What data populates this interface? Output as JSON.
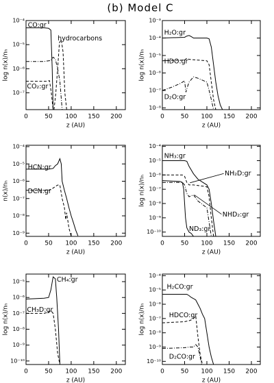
{
  "title": "(b) Model C",
  "chart_data": [
    {
      "type": "line",
      "ylabel": "log n(x)/nₕ",
      "xlabel": "z (AU)",
      "log_y": true,
      "xlim": [
        0,
        220
      ],
      "xticks": [
        0,
        50,
        100,
        150,
        200
      ],
      "ylim": [
        2e-08,
        0.0001
      ],
      "yticks": [
        {
          "value": 1e-07,
          "label": "10⁻⁷"
        },
        {
          "value": 1e-06,
          "label": "10⁻⁶"
        },
        {
          "value": 1e-05,
          "label": "10⁻⁵"
        },
        {
          "value": 0.0001,
          "label": "10⁻⁴"
        }
      ],
      "series": [
        {
          "name": "CO:gr",
          "color": "#000000",
          "dash": "solid",
          "x": [
            0,
            10,
            40,
            50,
            55,
            58,
            60
          ],
          "values": [
            5e-05,
            5e-05,
            5e-05,
            4.8e-05,
            4e-05,
            1e-06,
            2e-08
          ]
        },
        {
          "name": "hydrocarbons",
          "color": "#000000",
          "dash": "dashed",
          "x": [
            62,
            66,
            70,
            74,
            78,
            82,
            86,
            90
          ],
          "values": [
            2e-08,
            1e-07,
            1e-06,
            1.2e-05,
            1.6e-05,
            5e-06,
            1e-07,
            2e-08
          ]
        },
        {
          "color": "#000000",
          "dash": "dashdot",
          "x": [
            0,
            40,
            55,
            60,
            65,
            70,
            75,
            80
          ],
          "values": [
            2e-06,
            2e-06,
            2.2e-06,
            3e-06,
            2.5e-06,
            1e-06,
            3e-07,
            2e-08
          ]
        },
        {
          "name": "CO₂:gr",
          "color": "#000000",
          "dash": "dashed",
          "x": [
            0,
            45,
            52,
            56,
            60
          ],
          "values": [
            3e-07,
            3e-07,
            3.2e-07,
            1e-07,
            2e-08
          ]
        }
      ]
    },
    {
      "type": "line",
      "ylabel": "log n(x)/nₕ",
      "xlabel": "z (AU)",
      "log_y": true,
      "xlim": [
        0,
        220
      ],
      "xticks": [
        0,
        50,
        100,
        150,
        200
      ],
      "ylim": [
        8e-09,
        0.001
      ],
      "yticks": [
        {
          "value": 1e-08,
          "label": "10⁻⁸"
        },
        {
          "value": 1e-07,
          "label": "10⁻⁷"
        },
        {
          "value": 1e-06,
          "label": "10⁻⁶"
        },
        {
          "value": 1e-05,
          "label": "10⁻⁵"
        },
        {
          "value": 0.0001,
          "label": "10⁻⁴"
        },
        {
          "value": 0.001,
          "label": "10⁻³"
        }
      ],
      "series": [
        {
          "name": "H₂O:gr",
          "color": "#000000",
          "dash": "solid",
          "x": [
            0,
            50,
            55,
            60,
            65,
            70,
            100,
            105,
            110,
            115,
            120,
            125,
            130,
            135
          ],
          "values": [
            0.0001,
            0.00011,
            0.00013,
            0.00014,
            0.00012,
            0.0001,
            0.0001,
            9e-05,
            3e-05,
            3e-06,
            3e-07,
            5e-08,
            1.5e-08,
            8e-09
          ]
        },
        {
          "name": "HDO:gr",
          "color": "#000000",
          "dash": "dashed",
          "x": [
            0,
            50,
            55,
            60,
            100,
            105,
            110,
            115,
            120
          ],
          "values": [
            5e-06,
            5.5e-06,
            7e-06,
            6e-06,
            5e-06,
            3e-06,
            3e-07,
            3e-08,
            8e-09
          ]
        },
        {
          "name": "D₂O:gr",
          "color": "#000000",
          "dash": "dashdot",
          "x": [
            0,
            20,
            40,
            50,
            53,
            56,
            60,
            70,
            80,
            100,
            105,
            110,
            115
          ],
          "values": [
            1e-07,
            1.5e-07,
            2.5e-07,
            3.5e-07,
            8e-08,
            1.5e-07,
            3e-07,
            6e-07,
            5e-07,
            3e-07,
            1e-07,
            3e-08,
            8e-09
          ]
        }
      ]
    },
    {
      "type": "line",
      "ylabel": "n(x)/nₕ",
      "xlabel": "z (AU)",
      "log_y": true,
      "xlim": [
        0,
        220
      ],
      "xticks": [
        0,
        50,
        100,
        150,
        200
      ],
      "ylim": [
        6.5e-10,
        0.00012
      ],
      "yticks": [
        {
          "value": 1e-09,
          "label": "10⁻⁹"
        },
        {
          "value": 1e-08,
          "label": "10⁻⁸"
        },
        {
          "value": 1e-07,
          "label": "10⁻⁷"
        },
        {
          "value": 1e-06,
          "label": "10⁻⁶"
        },
        {
          "value": 1e-05,
          "label": "10⁻⁵"
        },
        {
          "value": 0.0001,
          "label": "10⁻⁴"
        }
      ],
      "series": [
        {
          "name": "HCN:gr",
          "color": "#000000",
          "dash": "solid",
          "x": [
            0,
            50,
            60,
            65,
            70,
            75,
            78,
            80,
            85,
            90,
            95,
            100,
            105,
            110,
            115
          ],
          "values": [
            5e-06,
            5e-06,
            5.5e-06,
            8e-06,
            1e-05,
            2e-05,
            1e-05,
            1e-06,
            3e-07,
            1e-07,
            3e-08,
            1e-08,
            4e-09,
            1.5e-09,
            7e-10
          ]
        },
        {
          "name": "DCN:gr",
          "color": "#000000",
          "dash": "dashed",
          "x": [
            0,
            50,
            60,
            65,
            70,
            75,
            80,
            85,
            88,
            90,
            95,
            100
          ],
          "values": [
            3e-07,
            3e-07,
            4e-07,
            5e-07,
            6e-07,
            6e-07,
            1e-07,
            3e-08,
            6e-09,
            1.5e-08,
            2e-09,
            6.5e-10
          ]
        }
      ]
    },
    {
      "type": "line",
      "ylabel": "log n(x)/nₕ",
      "xlabel": "z (AU)",
      "log_y": true,
      "xlim": [
        0,
        220
      ],
      "xticks": [
        0,
        50,
        100,
        150,
        200
      ],
      "ylim": [
        5e-11,
        0.00012
      ],
      "yticks": [
        {
          "value": 1e-10,
          "label": "10⁻¹⁰"
        },
        {
          "value": 1e-09,
          "label": "10⁻⁹"
        },
        {
          "value": 1e-08,
          "label": "10⁻⁸"
        },
        {
          "value": 1e-07,
          "label": "10⁻⁷"
        },
        {
          "value": 1e-06,
          "label": "10⁻⁶"
        },
        {
          "value": 1e-05,
          "label": "10⁻⁵"
        },
        {
          "value": 0.0001,
          "label": "10⁻⁴"
        }
      ],
      "series": [
        {
          "name": "NH₃:gr",
          "color": "#000000",
          "dash": "solid",
          "x": [
            0,
            50,
            55,
            60,
            70,
            80,
            100,
            105,
            110,
            115,
            120
          ],
          "values": [
            1e-05,
            1e-05,
            9e-06,
            4e-06,
            1.2e-06,
            5e-07,
            2e-07,
            1e-07,
            1e-08,
            6e-10,
            5e-11
          ]
        },
        {
          "name": "NH₂D:gr",
          "color": "#000000",
          "dash": "dashed",
          "x": [
            0,
            45,
            50,
            55,
            60,
            70,
            100,
            105,
            110,
            115
          ],
          "values": [
            1e-06,
            1e-06,
            8e-07,
            3e-07,
            2e-07,
            2e-07,
            1.5e-07,
            3e-08,
            1e-09,
            5e-11
          ]
        },
        {
          "name": "NHD₂:gr",
          "color": "#000000",
          "dash": "dashdot",
          "x": [
            0,
            45,
            50,
            55,
            60,
            70,
            80,
            100,
            105,
            110
          ],
          "values": [
            3e-07,
            3e-07,
            2e-07,
            5e-08,
            3e-08,
            4e-08,
            1.5e-08,
            5e-09,
            5e-10,
            5e-11
          ]
        },
        {
          "name": "ND₃:gr",
          "color": "#000000",
          "dash": "solid",
          "x": [
            0,
            40,
            45,
            48,
            50,
            52,
            55,
            60,
            65,
            70
          ],
          "values": [
            4e-07,
            3.5e-07,
            3e-07,
            1e-07,
            1e-08,
            1e-09,
            2e-10,
            1e-10,
            8e-11,
            5e-11
          ]
        }
      ]
    },
    {
      "type": "line",
      "ylabel": "log n(x)/nₕ",
      "xlabel": "z (AU)",
      "log_y": true,
      "xlim": [
        0,
        220
      ],
      "xticks": [
        0,
        50,
        100,
        150,
        200
      ],
      "ylim": [
        6e-11,
        3e-05
      ],
      "yticks": [
        {
          "value": 1e-10,
          "label": "10⁻¹⁰"
        },
        {
          "value": 1e-09,
          "label": "10⁻⁹"
        },
        {
          "value": 1e-08,
          "label": "10⁻⁸"
        },
        {
          "value": 1e-07,
          "label": "10⁻⁷"
        },
        {
          "value": 1e-06,
          "label": "10⁻⁶"
        },
        {
          "value": 1e-05,
          "label": "10⁻⁵"
        }
      ],
      "series": [
        {
          "name": "CH₄:gr",
          "color": "#000000",
          "dash": "solid",
          "x": [
            0,
            40,
            50,
            55,
            60,
            65,
            68,
            70,
            72,
            75
          ],
          "values": [
            8e-07,
            9e-07,
            1e-06,
            3e-06,
            2e-05,
            1.5e-05,
            1e-06,
            1e-07,
            1e-08,
            6e-11
          ]
        },
        {
          "name": "CH₃D:gr",
          "color": "#000000",
          "dash": "dashed",
          "x": [
            0,
            40,
            50,
            55,
            60,
            65,
            70,
            75
          ],
          "values": [
            1e-07,
            1e-07,
            1.2e-07,
            1.5e-07,
            1e-07,
            1e-08,
            3e-10,
            6e-11
          ]
        }
      ]
    },
    {
      "type": "line",
      "ylabel": "log n(x)/nₕ",
      "xlabel": "z (AU)",
      "log_y": true,
      "xlim": [
        0,
        220
      ],
      "xticks": [
        0,
        50,
        100,
        150,
        200
      ],
      "ylim": [
        6e-11,
        0.00013
      ],
      "yticks": [
        {
          "value": 1e-10,
          "label": "10⁻¹⁰"
        },
        {
          "value": 1e-09,
          "label": "10⁻⁹"
        },
        {
          "value": 1e-08,
          "label": "10⁻⁸"
        },
        {
          "value": 1e-07,
          "label": "10⁻⁷"
        },
        {
          "value": 1e-06,
          "label": "10⁻⁶"
        },
        {
          "value": 1e-05,
          "label": "10⁻⁵"
        },
        {
          "value": 0.0001,
          "label": "10⁻⁴"
        }
      ],
      "series": [
        {
          "name": "H₂CO:gr",
          "color": "#000000",
          "dash": "solid",
          "x": [
            0,
            50,
            55,
            60,
            65,
            70,
            75,
            80,
            85,
            90,
            95,
            100,
            105,
            110,
            115
          ],
          "values": [
            5e-06,
            5e-06,
            5e-06,
            4e-06,
            3e-06,
            2.5e-06,
            2e-06,
            1e-06,
            5e-07,
            2e-07,
            1e-07,
            1e-08,
            1e-09,
            2e-10,
            6e-11
          ]
        },
        {
          "name": "HDCO:gr",
          "color": "#000000",
          "dash": "dashed",
          "x": [
            0,
            50,
            60,
            65,
            70,
            75,
            80,
            85,
            90
          ],
          "values": [
            5e-08,
            6e-08,
            7e-08,
            8e-08,
            1e-07,
            1.5e-07,
            5e-09,
            3e-10,
            6e-11
          ]
        },
        {
          "name": "D₂CO:gr",
          "color": "#000000",
          "dash": "dashdot",
          "x": [
            0,
            50,
            60,
            65,
            70,
            75,
            80,
            85,
            88
          ],
          "values": [
            8e-10,
            9e-10,
            1e-09,
            1e-09,
            1e-09,
            1.5e-09,
            1e-09,
            2e-10,
            6e-11
          ]
        }
      ]
    }
  ]
}
